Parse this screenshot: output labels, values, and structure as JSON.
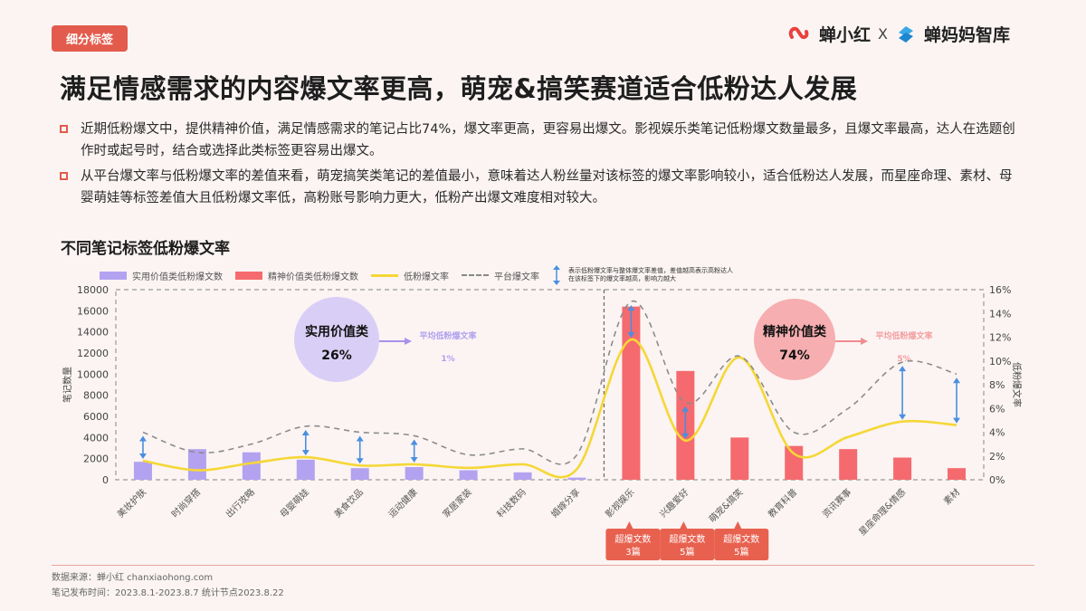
{
  "header": {
    "tag": "细分标签",
    "logo_left": "蝉小红",
    "logo_sep": "X",
    "logo_right": "蝉妈妈智库",
    "title": "满足情感需求的内容爆文率更高，萌宠&搞笑赛道适合低粉达人发展"
  },
  "bullets": [
    "近期低粉爆文中，提供精神价值，满足情感需求的笔记占比74%，爆文率更高，更容易出爆文。影视娱乐类笔记低粉爆文数量最多，且爆文率最高，达人在选题创作时或起号时，结合或选择此类标签更容易出爆文。",
    "从平台爆文率与低粉爆文率的差值来看，萌宠搞笑类笔记的差值最小，意味着达人粉丝量对该标签的爆文率影响较小，适合低粉达人发展，而星座命理、素材、母婴萌娃等标签差值大且低粉爆文率低，高粉账号影响力更大，低粉产出爆文难度相对较大。"
  ],
  "chart": {
    "title": "不同笔记标签低粉爆文率",
    "legend": {
      "practical": "实用价值类低粉爆文数",
      "spiritual": "精神价值类低粉爆文数",
      "low_rate": "低粉爆文率",
      "platform_rate": "平台爆文率",
      "arrow_note": "表示低粉爆文率与整体爆文率差值，差值越高表示高粉达人在该标签下的爆文率越高，影响力越大"
    },
    "y_left_label": "笔记数量",
    "y_right_label": "低粉爆文率",
    "bubble_practical": {
      "name": "实用价值类",
      "pct": "26%",
      "avg_label": "平均低粉爆文率",
      "avg_value": "1%"
    },
    "bubble_spiritual": {
      "name": "精神价值类",
      "pct": "74%",
      "avg_label": "平均低粉爆文率",
      "avg_value": "5%"
    },
    "callouts": [
      {
        "category": "影视娱乐",
        "line1": "超爆文数",
        "line2": "3篇"
      },
      {
        "category": "兴趣爱好",
        "line1": "超爆文数",
        "line2": "5篇"
      },
      {
        "category": "萌宠&搞笑",
        "line1": "超爆文数",
        "line2": "5篇"
      }
    ]
  },
  "chart_data": {
    "type": "bar",
    "title": "不同笔记标签低粉爆文率",
    "categories": [
      "美妆护肤",
      "时尚穿搭",
      "出行攻略",
      "母婴萌娃",
      "美食饮品",
      "运动健康",
      "家居家装",
      "科技数码",
      "婚嫁分享",
      "影视娱乐",
      "兴趣爱好",
      "萌宠&搞笑",
      "教育科普",
      "资讯赛事",
      "星座命理&情感",
      "素材"
    ],
    "series": [
      {
        "name": "实用价值类低粉爆文数",
        "type": "bar",
        "axis": "left",
        "color": "#b3a2f0",
        "values": [
          1700,
          2900,
          2600,
          1900,
          1100,
          1200,
          900,
          700,
          200,
          null,
          null,
          null,
          null,
          null,
          null,
          null
        ]
      },
      {
        "name": "精神价值类低粉爆文数",
        "type": "bar",
        "axis": "left",
        "color": "#f56a6e",
        "values": [
          null,
          null,
          null,
          null,
          null,
          null,
          null,
          null,
          null,
          16400,
          10300,
          4000,
          3200,
          2900,
          2100,
          1100
        ]
      },
      {
        "name": "低粉爆文率",
        "type": "line",
        "axis": "right",
        "color": "#f5d736",
        "unit": "%",
        "values": [
          1.6,
          0.8,
          1.4,
          1.9,
          1.2,
          1.3,
          1.0,
          1.3,
          0.9,
          11.8,
          3.3,
          10.3,
          2.2,
          3.6,
          4.9,
          4.6
        ]
      },
      {
        "name": "平台爆文率",
        "type": "line",
        "style": "dashed",
        "axis": "right",
        "color": "#8c8c8c",
        "unit": "%",
        "values": [
          4.0,
          2.3,
          3.0,
          4.5,
          4.0,
          3.7,
          2.1,
          2.6,
          2.1,
          15.0,
          6.5,
          10.4,
          4.0,
          6.0,
          9.9,
          8.9
        ]
      }
    ],
    "arrows_at": [
      "美妆护肤",
      "母婴萌娃",
      "美食饮品",
      "运动健康",
      "影视娱乐",
      "兴趣爱好",
      "星座命理&情感",
      "素材"
    ],
    "y_left": {
      "label": "笔记数量",
      "range": [
        0,
        18000
      ],
      "ticks": [
        "0",
        "2000",
        "4000",
        "6000",
        "8000",
        "10000",
        "12000",
        "14000",
        "16000",
        "18000"
      ]
    },
    "y_right": {
      "label": "低粉爆文率",
      "range": [
        0,
        16
      ],
      "ticks": [
        "0%",
        "2%",
        "4%",
        "6%",
        "8%",
        "10%",
        "12%",
        "14%",
        "16%"
      ]
    },
    "legend_position": "top",
    "grid": false
  },
  "footer": {
    "source": "数据来源：蝉小红 chanxiaohong.com",
    "period": "笔记发布时间：2023.8.1-2023.8.7 统计节点2023.8.22"
  }
}
